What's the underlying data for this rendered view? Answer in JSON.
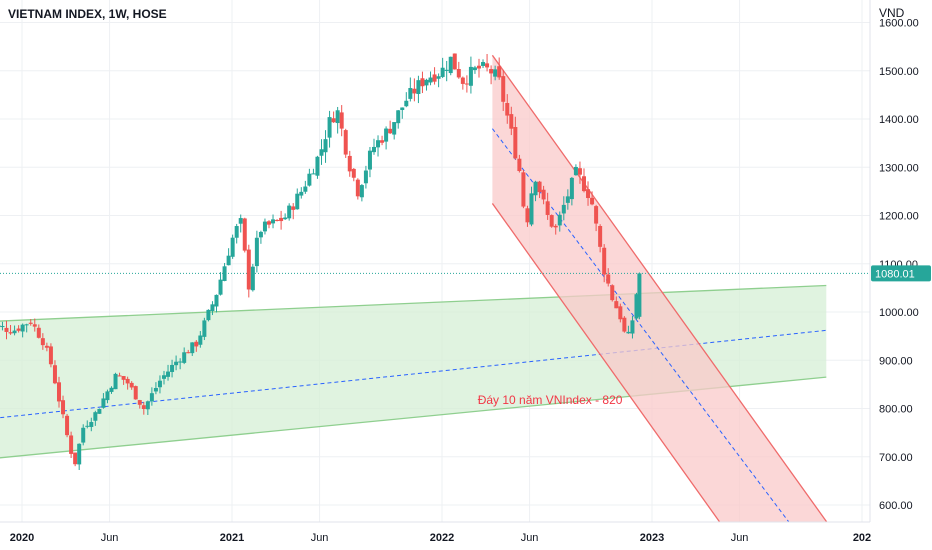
{
  "header": {
    "title": "VIETNAM INDEX, 1W, HOSE",
    "unit": "VND"
  },
  "colors": {
    "up": "#26a69a",
    "down": "#ef5350",
    "green_channel_fill": "#d6efd6",
    "green_channel_line": "#8fcf8f",
    "red_channel_fill": "#f9caca",
    "red_channel_line": "#ef6b6b",
    "dashed_line": "#2962ff",
    "last_price": "#26a69a",
    "annotation": "#f23645",
    "grid": "#eef0f3",
    "axis_text": "#131722"
  },
  "chart_data": {
    "type": "candlestick",
    "interval": "1W",
    "ylim": [
      555,
      1625
    ],
    "y_ticks": [
      {
        "value": 1600,
        "label": "1600.00"
      },
      {
        "value": 1500,
        "label": "1500.00"
      },
      {
        "value": 1400,
        "label": "1400.00"
      },
      {
        "value": 1300,
        "label": "1300.00"
      },
      {
        "value": 1200,
        "label": "1200.00"
      },
      {
        "value": 1100,
        "label": "1100.00"
      },
      {
        "value": 1000,
        "label": "1000.00"
      },
      {
        "value": 900,
        "label": "900.00"
      },
      {
        "value": 800,
        "label": "800.00"
      },
      {
        "value": 700,
        "label": "700.00"
      },
      {
        "value": 600,
        "label": "600.00"
      }
    ],
    "x_ticks": [
      {
        "t": 2020.0,
        "label": "2020",
        "bold": true
      },
      {
        "t": 2020.417,
        "label": "Jun",
        "bold": false
      },
      {
        "t": 2021.0,
        "label": "2021",
        "bold": true
      },
      {
        "t": 2021.417,
        "label": "Jun",
        "bold": false
      },
      {
        "t": 2022.0,
        "label": "2022",
        "bold": true
      },
      {
        "t": 2022.417,
        "label": "Jun",
        "bold": false
      },
      {
        "t": 2023.0,
        "label": "2023",
        "bold": true
      },
      {
        "t": 2023.417,
        "label": "Jun",
        "bold": false
      },
      {
        "t": 2024.0,
        "label": "202",
        "bold": true
      }
    ],
    "last_price": {
      "value": 1080.01,
      "label": "1080.01"
    },
    "annotation": {
      "text": "Đáy 10 năm VNIndex - 820",
      "t": 2022.17,
      "value": 818
    },
    "green_channel": {
      "upper": [
        [
          2019.83,
          980
        ],
        [
          2023.83,
          1055
        ]
      ],
      "mid": [
        [
          2019.83,
          778
        ],
        [
          2023.83,
          962
        ]
      ],
      "lower": [
        [
          2019.83,
          695
        ],
        [
          2023.83,
          865
        ]
      ]
    },
    "red_channel": {
      "upper": [
        [
          2022.24,
          1532
        ],
        [
          2023.84,
          560
        ]
      ],
      "mid": [
        [
          2022.24,
          1380
        ],
        [
          2023.66,
          560
        ]
      ],
      "lower": [
        [
          2022.24,
          1225
        ],
        [
          2023.33,
          560
        ]
      ]
    },
    "anchors": [
      [
        2019.83,
        975
      ],
      [
        2019.96,
        962
      ],
      [
        2020.04,
        982
      ],
      [
        2020.1,
        940
      ],
      [
        2020.14,
        890
      ],
      [
        2020.21,
        752
      ],
      [
        2020.25,
        682
      ],
      [
        2020.29,
        760
      ],
      [
        2020.35,
        790
      ],
      [
        2020.45,
        870
      ],
      [
        2020.5,
        855
      ],
      [
        2020.58,
        800
      ],
      [
        2020.66,
        860
      ],
      [
        2020.75,
        905
      ],
      [
        2020.83,
        935
      ],
      [
        2020.92,
        1030
      ],
      [
        2021.0,
        1150
      ],
      [
        2021.04,
        1190
      ],
      [
        2021.08,
        1055
      ],
      [
        2021.13,
        1170
      ],
      [
        2021.25,
        1195
      ],
      [
        2021.33,
        1250
      ],
      [
        2021.42,
        1330
      ],
      [
        2021.46,
        1390
      ],
      [
        2021.5,
        1420
      ],
      [
        2021.56,
        1305
      ],
      [
        2021.6,
        1250
      ],
      [
        2021.67,
        1340
      ],
      [
        2021.75,
        1380
      ],
      [
        2021.83,
        1440
      ],
      [
        2021.92,
        1485
      ],
      [
        2022.0,
        1500
      ],
      [
        2022.04,
        1525
      ],
      [
        2022.1,
        1480
      ],
      [
        2022.17,
        1505
      ],
      [
        2022.23,
        1500
      ],
      [
        2022.27,
        1480
      ],
      [
        2022.33,
        1370
      ],
      [
        2022.37,
        1290
      ],
      [
        2022.4,
        1175
      ],
      [
        2022.44,
        1290
      ],
      [
        2022.5,
        1200
      ],
      [
        2022.54,
        1170
      ],
      [
        2022.58,
        1220
      ],
      [
        2022.64,
        1290
      ],
      [
        2022.71,
        1235
      ],
      [
        2022.77,
        1090
      ],
      [
        2022.81,
        1030
      ],
      [
        2022.85,
        990
      ],
      [
        2022.88,
        935
      ],
      [
        2022.91,
        990
      ],
      [
        2022.94,
        1080
      ]
    ]
  }
}
